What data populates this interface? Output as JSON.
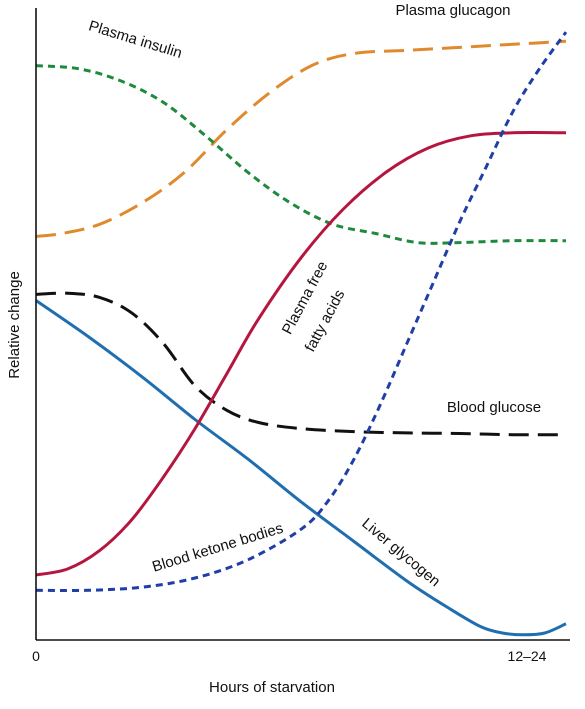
{
  "chart_data": {
    "type": "line",
    "title": "",
    "xlabel": "Hours of starvation",
    "ylabel": "Relative change",
    "x_ticks": [
      "0",
      "12–24"
    ],
    "xlim": [
      0,
      1
    ],
    "ylim": [
      0,
      1
    ],
    "grid": false,
    "legend": "none (curves labeled inline)",
    "series": [
      {
        "name": "Plasma glucagon",
        "color": "#e08a2e",
        "style": "long-dash",
        "x": [
          0,
          0.05,
          0.12,
          0.2,
          0.28,
          0.36,
          0.44,
          0.52,
          0.6,
          0.7,
          0.8,
          0.9,
          1.0
        ],
        "y": [
          0.655,
          0.66,
          0.675,
          0.71,
          0.76,
          0.83,
          0.89,
          0.935,
          0.955,
          0.96,
          0.965,
          0.97,
          0.975
        ]
      },
      {
        "name": "Plasma insulin",
        "color": "#1e8a3c",
        "style": "dash",
        "x": [
          0,
          0.08,
          0.16,
          0.24,
          0.32,
          0.4,
          0.48,
          0.56,
          0.64,
          0.72,
          0.8,
          0.9,
          1.0
        ],
        "y": [
          0.935,
          0.93,
          0.91,
          0.875,
          0.82,
          0.76,
          0.71,
          0.675,
          0.66,
          0.645,
          0.645,
          0.648,
          0.648
        ]
      },
      {
        "name": "Blood glucose",
        "color": "#111111",
        "style": "long-dash",
        "x": [
          0,
          0.06,
          0.12,
          0.18,
          0.24,
          0.3,
          0.36,
          0.42,
          0.5,
          0.6,
          0.7,
          0.8,
          0.9,
          1.0
        ],
        "y": [
          0.56,
          0.562,
          0.555,
          0.53,
          0.48,
          0.41,
          0.37,
          0.35,
          0.34,
          0.335,
          0.333,
          0.332,
          0.33,
          0.33
        ]
      },
      {
        "name": "Liver glycogen",
        "color": "#1f6fb0",
        "style": "solid",
        "x": [
          0,
          0.1,
          0.2,
          0.3,
          0.4,
          0.5,
          0.6,
          0.7,
          0.78,
          0.84,
          0.88,
          0.92,
          0.96,
          1.0
        ],
        "y": [
          0.55,
          0.49,
          0.425,
          0.355,
          0.29,
          0.22,
          0.155,
          0.09,
          0.045,
          0.015,
          0.005,
          0.002,
          0.005,
          0.02
        ]
      },
      {
        "name": "Plasma free fatty acids",
        "color": "#b5163f",
        "style": "solid",
        "x": [
          0,
          0.06,
          0.12,
          0.18,
          0.24,
          0.3,
          0.36,
          0.42,
          0.5,
          0.58,
          0.66,
          0.74,
          0.82,
          0.9,
          1.0
        ],
        "y": [
          0.1,
          0.11,
          0.14,
          0.19,
          0.26,
          0.34,
          0.43,
          0.52,
          0.62,
          0.7,
          0.76,
          0.8,
          0.82,
          0.825,
          0.825
        ]
      },
      {
        "name": "Blood ketone bodies",
        "color": "#1f3ea8",
        "style": "dash",
        "x": [
          0,
          0.1,
          0.2,
          0.3,
          0.4,
          0.5,
          0.55,
          0.6,
          0.65,
          0.7,
          0.75,
          0.8,
          0.85,
          0.9,
          0.95,
          1.0
        ],
        "y": [
          0.075,
          0.075,
          0.08,
          0.095,
          0.125,
          0.175,
          0.22,
          0.29,
          0.38,
          0.48,
          0.58,
          0.68,
          0.77,
          0.86,
          0.93,
          0.99
        ]
      }
    ],
    "annotations": [
      {
        "text": "Plasma glucagon",
        "series": 0
      },
      {
        "text": "Plasma insulin",
        "series": 1
      },
      {
        "text": "Blood glucose",
        "series": 2
      },
      {
        "text": "Liver glycogen",
        "series": 3
      },
      {
        "text": "Plasma free",
        "series": 4
      },
      {
        "text": "fatty acids",
        "series": 4
      },
      {
        "text": "Blood ketone bodies",
        "series": 5
      }
    ]
  }
}
